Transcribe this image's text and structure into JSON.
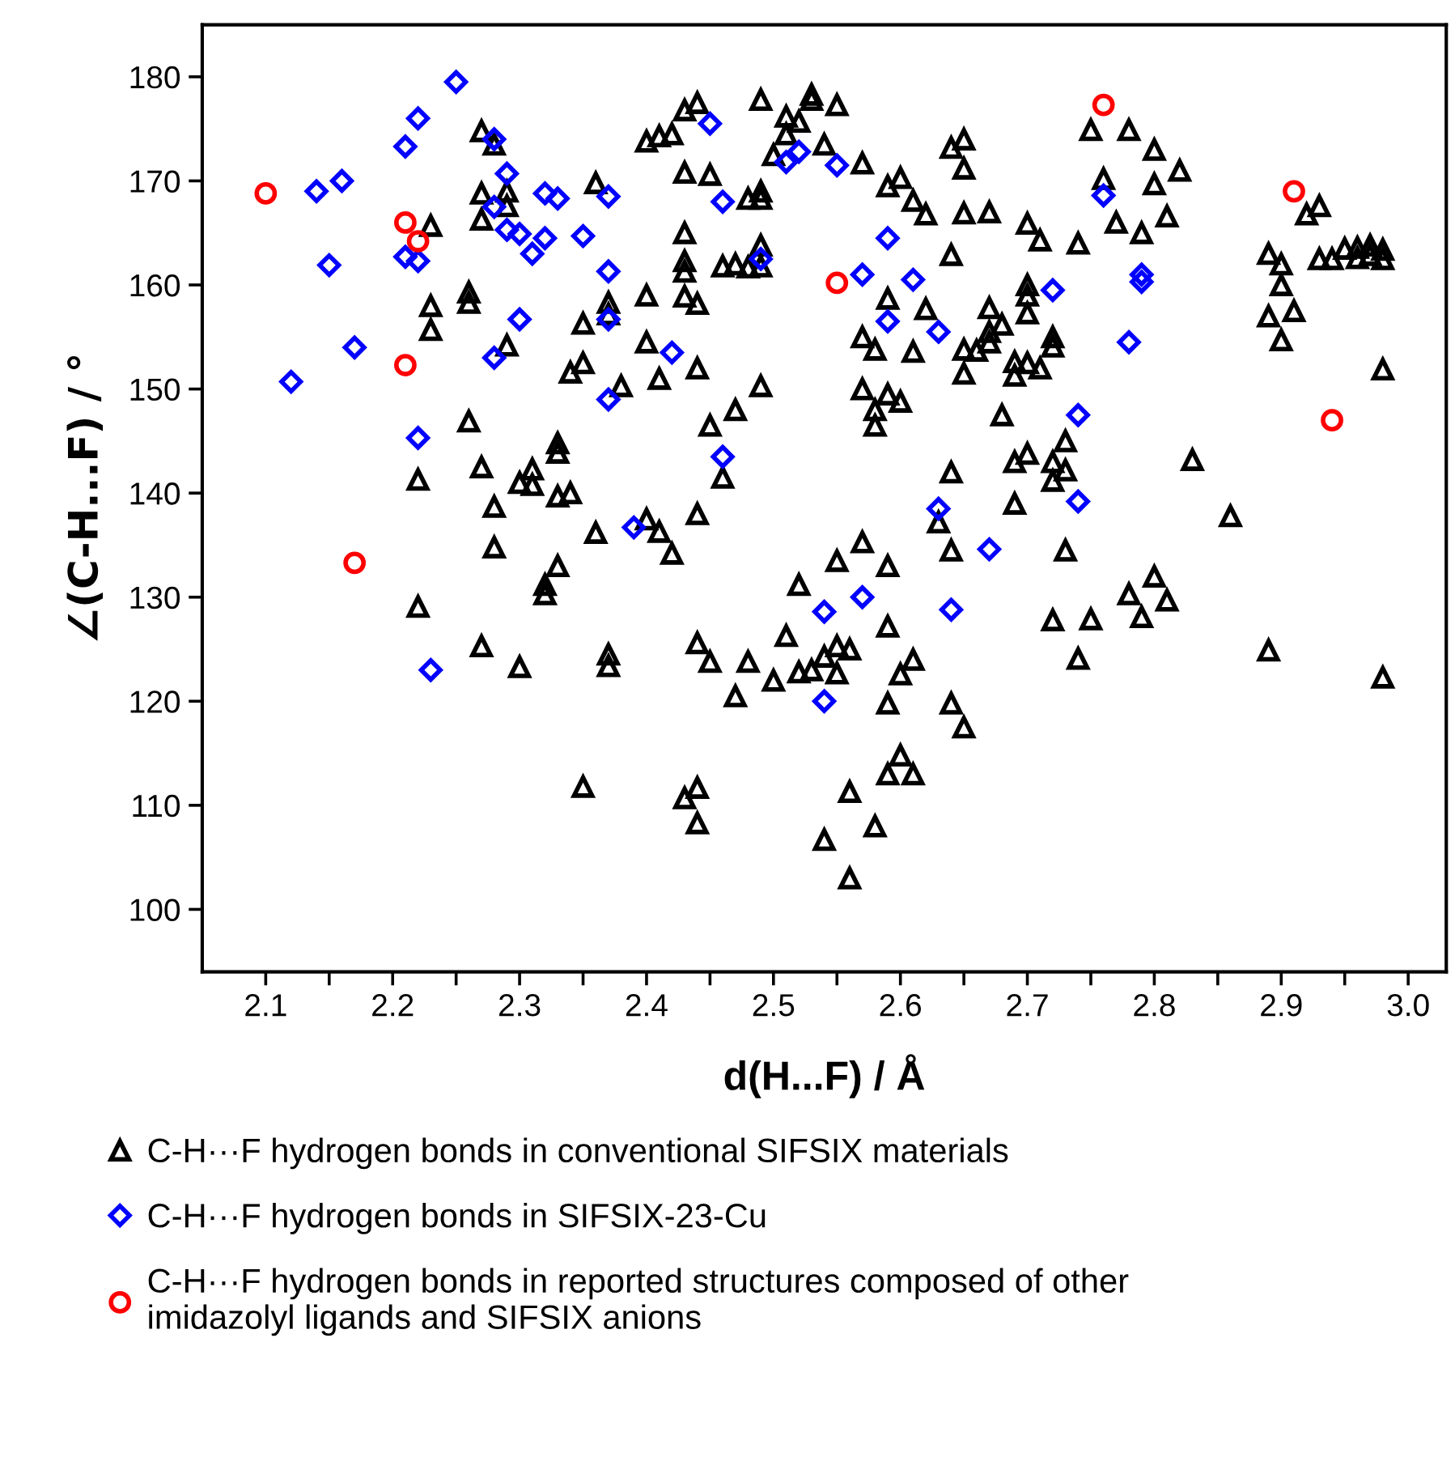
{
  "chart_data": {
    "type": "scatter",
    "xlabel": "d(H...F) / Å",
    "ylabel": "∠(C-H...F) / °",
    "xlim": [
      2.05,
      3.03
    ],
    "ylim": [
      94,
      185
    ],
    "xticks": [
      2.1,
      {
        "value": 2.15,
        "label": null
      },
      2.2,
      {
        "value": 2.25,
        "label": null
      },
      2.3,
      {
        "value": 2.35,
        "label": null
      },
      2.4,
      {
        "value": 2.45,
        "label": null
      },
      2.5,
      {
        "value": 2.55,
        "label": null
      },
      2.6,
      {
        "value": 2.65,
        "label": null
      },
      2.7,
      {
        "value": 2.75,
        "label": null
      },
      2.8,
      {
        "value": 2.85,
        "label": null
      },
      2.9,
      {
        "value": 2.95,
        "label": null
      },
      {
        "value": 3.0,
        "label": "3.0"
      }
    ],
    "yticks": [
      100,
      110,
      120,
      130,
      140,
      150,
      160,
      170,
      180
    ],
    "grid": false,
    "legend": "bottom",
    "series": [
      {
        "name": "C-H···F hydrogen bonds in conventional SIFSIX materials",
        "color": "#000000",
        "marker": "triangle",
        "x": [
          2.22,
          2.22,
          2.23,
          2.23,
          2.23,
          2.26,
          2.26,
          2.26,
          2.27,
          2.27,
          2.27,
          2.27,
          2.27,
          2.28,
          2.28,
          2.28,
          2.29,
          2.29,
          2.29,
          2.3,
          2.3,
          2.31,
          2.31,
          2.32,
          2.32,
          2.33,
          2.33,
          2.33,
          2.33,
          2.34,
          2.34,
          2.35,
          2.35,
          2.35,
          2.36,
          2.36,
          2.37,
          2.37,
          2.37,
          2.37,
          2.38,
          2.4,
          2.4,
          2.4,
          2.4,
          2.41,
          2.41,
          2.41,
          2.42,
          2.42,
          2.43,
          2.43,
          2.43,
          2.43,
          2.43,
          2.43,
          2.43,
          2.44,
          2.44,
          2.44,
          2.44,
          2.44,
          2.44,
          2.44,
          2.45,
          2.45,
          2.45,
          2.46,
          2.46,
          2.47,
          2.47,
          2.47,
          2.48,
          2.48,
          2.48,
          2.49,
          2.49,
          2.49,
          2.49,
          2.49,
          2.49,
          2.5,
          2.5,
          2.51,
          2.51,
          2.51,
          2.52,
          2.52,
          2.52,
          2.53,
          2.53,
          2.53,
          2.54,
          2.54,
          2.54,
          2.55,
          2.55,
          2.55,
          2.55,
          2.56,
          2.56,
          2.56,
          2.57,
          2.57,
          2.57,
          2.57,
          2.58,
          2.58,
          2.58,
          2.58,
          2.59,
          2.59,
          2.59,
          2.59,
          2.59,
          2.59,
          2.59,
          2.6,
          2.6,
          2.6,
          2.6,
          2.61,
          2.61,
          2.61,
          2.61,
          2.62,
          2.62,
          2.63,
          2.64,
          2.64,
          2.64,
          2.64,
          2.64,
          2.65,
          2.65,
          2.65,
          2.65,
          2.65,
          2.65,
          2.66,
          2.67,
          2.67,
          2.67,
          2.67,
          2.68,
          2.68,
          2.69,
          2.69,
          2.69,
          2.69,
          2.7,
          2.7,
          2.7,
          2.7,
          2.7,
          2.7,
          2.71,
          2.71,
          2.72,
          2.72,
          2.72,
          2.72,
          2.72,
          2.73,
          2.73,
          2.73,
          2.74,
          2.74,
          2.75,
          2.75,
          2.76,
          2.77,
          2.78,
          2.78,
          2.79,
          2.79,
          2.8,
          2.8,
          2.8,
          2.81,
          2.81,
          2.82,
          2.83,
          2.86,
          2.89,
          2.89,
          2.89,
          2.9,
          2.9,
          2.9,
          2.91,
          2.92,
          2.93,
          2.93,
          2.94,
          2.95,
          2.96,
          2.96,
          2.97,
          2.97,
          2.98,
          2.98,
          2.98,
          2.98
        ],
        "values": [
          141.3,
          129.1,
          165.7,
          158.0,
          155.7,
          159.3,
          158.3,
          146.9,
          174.8,
          168.8,
          166.3,
          142.5,
          125.3,
          173.5,
          138.7,
          134.8,
          169,
          167.6,
          154.2,
          141,
          123.3,
          142.3,
          140.8,
          131.2,
          130.3,
          144.8,
          143.9,
          139.7,
          133,
          140,
          151.6,
          156.3,
          152.5,
          111.8,
          169.8,
          136.2,
          158.3,
          157.2,
          124.5,
          123.4,
          150.3,
          173.8,
          159,
          154.5,
          137.5,
          174.3,
          151,
          136.3,
          174.5,
          134.2,
          176.8,
          170.8,
          165,
          162.3,
          161.3,
          158.9,
          110.7,
          177.5,
          158.2,
          152,
          138,
          125.6,
          111.7,
          108.3,
          170.6,
          146.5,
          123.8,
          161.8,
          141.5,
          162,
          148,
          120.5,
          168.3,
          161.7,
          123.8,
          177.8,
          169,
          168.3,
          163.8,
          161.8,
          150.3,
          172.5,
          122,
          176.2,
          174.5,
          126.3,
          175.7,
          131.2,
          122.8,
          178.3,
          177.8,
          123,
          173.5,
          124.3,
          106.7,
          177.3,
          133.5,
          125.3,
          122.7,
          111.3,
          103,
          125,
          171.7,
          155,
          150,
          135.3,
          153.8,
          148,
          146.5,
          108,
          169.5,
          158.7,
          149.5,
          133,
          127.2,
          119.8,
          113,
          170.3,
          148.8,
          122.6,
          114.8,
          168.1,
          153.6,
          124,
          113,
          166.8,
          157.7,
          137.2,
          173.2,
          162.9,
          142,
          134.5,
          119.8,
          174,
          171.2,
          166.9,
          153.8,
          151.5,
          117.5,
          153.7,
          167,
          157.8,
          155.5,
          154.5,
          156.2,
          147.5,
          152.6,
          151.3,
          143,
          139,
          165.9,
          160,
          159,
          157.3,
          152.5,
          143.8,
          164.3,
          152,
          155,
          154.1,
          143,
          141.2,
          127.8,
          145,
          142.2,
          134.5,
          164,
          124.1,
          174.9,
          127.9,
          170.2,
          166,
          174.9,
          130.3,
          165,
          128.1,
          173,
          169.7,
          132,
          166.6,
          129.7,
          171,
          143.2,
          137.8,
          163,
          157,
          124.9,
          162,
          160,
          154.7,
          157.5,
          166.8,
          167.6,
          162.5,
          162.5,
          163.5,
          163.6,
          162.6,
          163.8,
          162.9,
          163.4,
          162.5,
          151.9,
          122.3
        ]
      },
      {
        "name": "C-H···F hydrogen bonds in SIFSIX-23-Cu",
        "color": "#0000ff",
        "marker": "diamond",
        "x": [
          2.12,
          2.14,
          2.15,
          2.16,
          2.17,
          2.21,
          2.22,
          2.21,
          2.22,
          2.22,
          2.23,
          2.25,
          2.28,
          2.28,
          2.28,
          2.29,
          2.29,
          2.3,
          2.3,
          2.31,
          2.32,
          2.32,
          2.33,
          2.35,
          2.37,
          2.37,
          2.37,
          2.37,
          2.39,
          2.42,
          2.45,
          2.46,
          2.46,
          2.49,
          2.51,
          2.52,
          2.55,
          2.54,
          2.54,
          2.57,
          2.57,
          2.59,
          2.59,
          2.61,
          2.63,
          2.63,
          2.64,
          2.67,
          2.72,
          2.74,
          2.74,
          2.76,
          2.78,
          2.79,
          2.79
        ],
        "values": [
          150.7,
          169,
          161.9,
          170,
          154,
          173.3,
          176,
          162.7,
          162.3,
          145.3,
          123,
          179.5,
          174,
          167.5,
          153,
          170.7,
          165.3,
          164.9,
          156.7,
          163,
          164.5,
          168.8,
          168.3,
          164.7,
          168.5,
          161.3,
          156.7,
          149,
          136.7,
          153.5,
          175.5,
          168,
          143.5,
          162.5,
          171.8,
          172.8,
          171.5,
          128.6,
          120,
          161,
          130,
          156.5,
          164.5,
          160.5,
          155.5,
          138.5,
          128.8,
          134.6,
          159.5,
          147.5,
          139.2,
          168.6,
          154.5,
          161,
          160.3
        ]
      },
      {
        "name": "C-H···F hydrogen bonds in reported structures composed of other\nimidazolyl ligands and SIFSIX anions",
        "color": "#ff0000",
        "marker": "circle",
        "x": [
          2.1,
          2.21,
          2.22,
          2.21,
          2.17,
          2.55,
          2.76,
          2.91,
          2.94
        ],
        "values": [
          168.8,
          166,
          164.2,
          152.3,
          133.3,
          160.2,
          177.3,
          169,
          147
        ]
      }
    ]
  }
}
